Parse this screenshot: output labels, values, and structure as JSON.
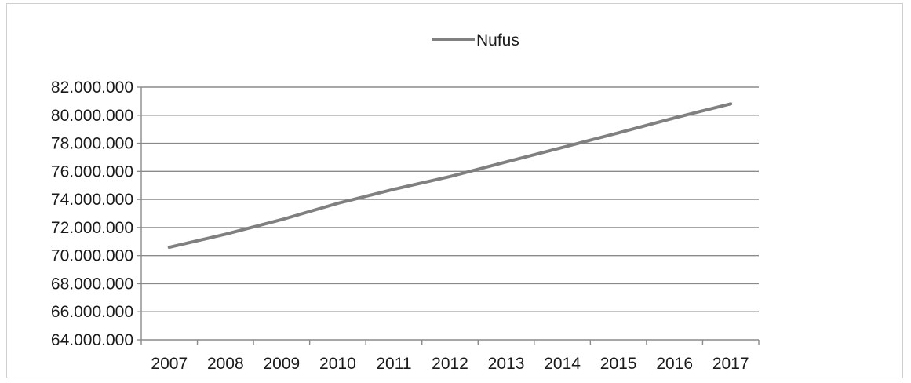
{
  "chart_data": {
    "type": "line",
    "title": "",
    "xlabel": "",
    "ylabel": "",
    "legend_position": "top-center",
    "grid": true,
    "categories": [
      "2007",
      "2008",
      "2009",
      "2010",
      "2011",
      "2012",
      "2013",
      "2014",
      "2015",
      "2016",
      "2017"
    ],
    "ylim": [
      64000000,
      82000000
    ],
    "ytick_values": [
      64000000,
      66000000,
      68000000,
      70000000,
      72000000,
      74000000,
      76000000,
      78000000,
      80000000,
      82000000
    ],
    "ytick_labels": [
      "64.000.000",
      "66.000.000",
      "68.000.000",
      "70.000.000",
      "72.000.000",
      "74.000.000",
      "76.000.000",
      "78.000.000",
      "80.000.000",
      "82.000.000"
    ],
    "series": [
      {
        "name": "Nufus",
        "color": "#808080",
        "values": [
          70590000,
          71520000,
          72560000,
          73720000,
          74720000,
          75630000,
          76670000,
          77700000,
          78740000,
          79810000,
          80810000
        ]
      }
    ]
  }
}
